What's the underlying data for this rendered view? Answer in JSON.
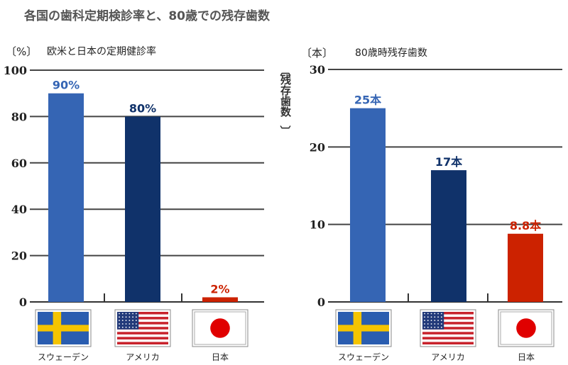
{
  "title": "各国の歯科定期検診率と、80歳での残存歯数",
  "colors": {
    "sweden": "#3565b4",
    "usa": "#10326a",
    "japan": "#cc2200"
  },
  "countries": [
    "スウェーデン",
    "アメリカ",
    "日本"
  ],
  "chart_data": [
    {
      "type": "bar",
      "title": "欧米と日本の定期健診率",
      "unit_label": "〔%〕",
      "categories": [
        "スウェーデン",
        "アメリカ",
        "日本"
      ],
      "values": [
        90,
        80,
        2
      ],
      "data_labels": [
        "90%",
        "80%",
        "2%"
      ],
      "ylim": [
        0,
        100
      ],
      "yticks": [
        0,
        20,
        40,
        60,
        80,
        100
      ],
      "grid": true
    },
    {
      "type": "bar",
      "title": "80歳時残存歯数",
      "unit_label": "〔本〕",
      "ylabel": "残存歯数",
      "ylabel_bracket_top": "︹",
      "ylabel_bracket_bottom": "︺",
      "categories": [
        "スウェーデン",
        "アメリカ",
        "日本"
      ],
      "values": [
        25,
        17,
        8.8
      ],
      "data_labels": [
        "25本",
        "17本",
        "8.8本"
      ],
      "ylim": [
        0,
        30
      ],
      "yticks": [
        0,
        10,
        20,
        30
      ],
      "grid": true
    }
  ]
}
